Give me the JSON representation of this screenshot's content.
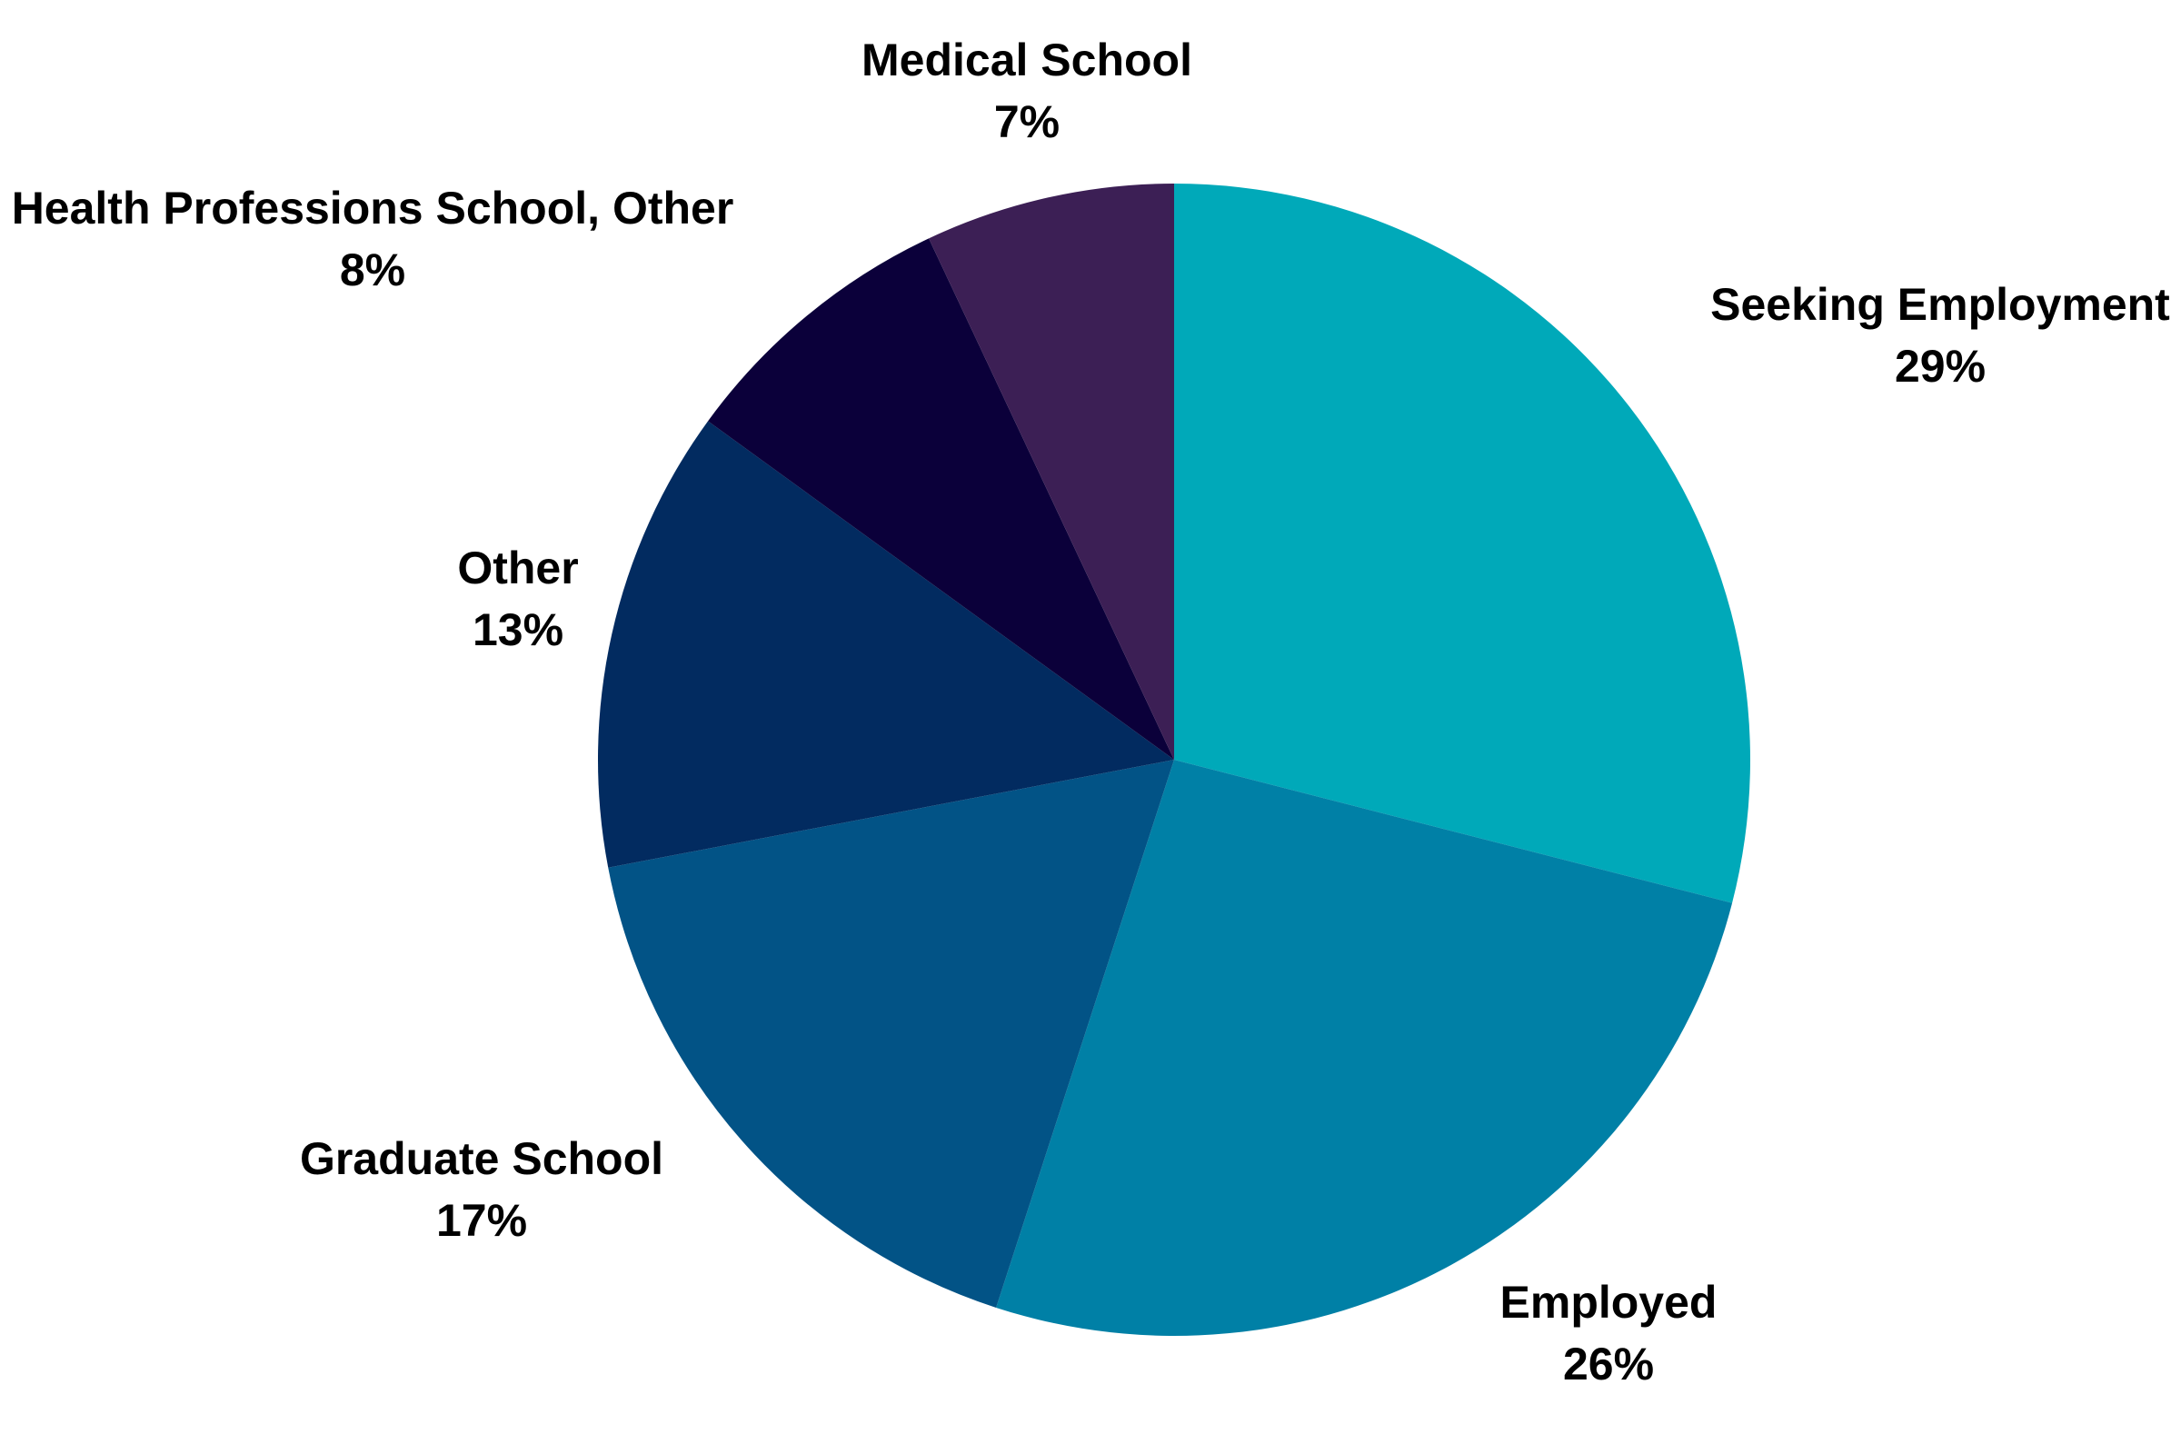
{
  "chart_data": {
    "type": "pie",
    "title": "",
    "slices": [
      {
        "label": "Seeking Employment",
        "value": 29,
        "value_label": "29%",
        "color": "#00a9b9"
      },
      {
        "label": "Employed",
        "value": 26,
        "value_label": "26%",
        "color": "#0080a6"
      },
      {
        "label": "Graduate School",
        "value": 17,
        "value_label": "17%",
        "color": "#025386"
      },
      {
        "label": "Other",
        "value": 13,
        "value_label": "13%",
        "color": "#022b60"
      },
      {
        "label": "Health Professions School, Other",
        "value": 8,
        "value_label": "8%",
        "color": "#0b003a"
      },
      {
        "label": "Medical School",
        "value": 7,
        "value_label": "7%",
        "color": "#3c1f55"
      }
    ],
    "start_direction": "top",
    "direction": "clockwise",
    "legend": "none"
  }
}
